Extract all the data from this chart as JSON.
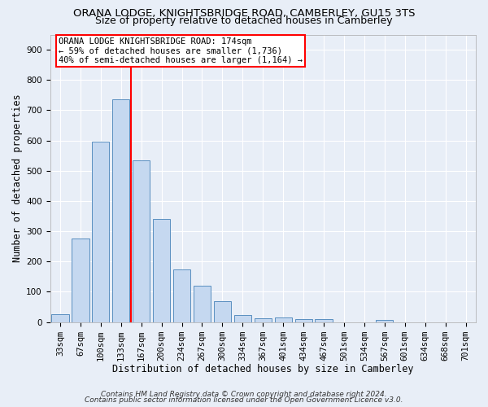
{
  "title1": "ORANA LODGE, KNIGHTSBRIDGE ROAD, CAMBERLEY, GU15 3TS",
  "title2": "Size of property relative to detached houses in Camberley",
  "xlabel": "Distribution of detached houses by size in Camberley",
  "ylabel": "Number of detached properties",
  "categories": [
    "33sqm",
    "67sqm",
    "100sqm",
    "133sqm",
    "167sqm",
    "200sqm",
    "234sqm",
    "267sqm",
    "300sqm",
    "334sqm",
    "367sqm",
    "401sqm",
    "434sqm",
    "467sqm",
    "501sqm",
    "534sqm",
    "567sqm",
    "601sqm",
    "634sqm",
    "668sqm",
    "701sqm"
  ],
  "values": [
    27,
    275,
    595,
    735,
    535,
    340,
    175,
    120,
    68,
    22,
    13,
    14,
    10,
    10,
    0,
    0,
    8,
    0,
    0,
    0,
    0
  ],
  "bar_color": "#c5d8f0",
  "bar_edge_color": "#5a8fc0",
  "vline_color": "red",
  "vline_pos": 3.5,
  "annotation_text": "ORANA LODGE KNIGHTSBRIDGE ROAD: 174sqm\n← 59% of detached houses are smaller (1,736)\n40% of semi-detached houses are larger (1,164) →",
  "annotation_box_color": "white",
  "annotation_box_edge": "red",
  "ylim": [
    0,
    950
  ],
  "yticks": [
    0,
    100,
    200,
    300,
    400,
    500,
    600,
    700,
    800,
    900
  ],
  "background_color": "#e8eef7",
  "grid_color": "white",
  "footer1": "Contains HM Land Registry data © Crown copyright and database right 2024.",
  "footer2": "Contains public sector information licensed under the Open Government Licence v3.0.",
  "title_fontsize": 9.5,
  "subtitle_fontsize": 9,
  "axis_label_fontsize": 8.5,
  "tick_fontsize": 7.5,
  "annotation_fontsize": 7.5,
  "footer_fontsize": 6.5
}
